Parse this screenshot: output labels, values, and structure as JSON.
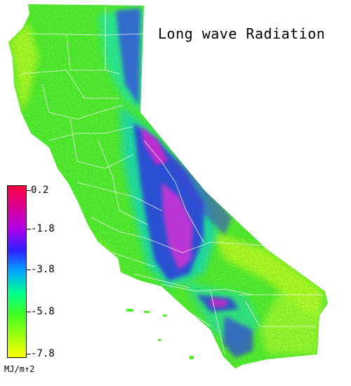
{
  "map": {
    "title": "Long wave Radiation",
    "region": "California",
    "legend": {
      "unit": "MJ/m↑2",
      "ticks": [
        "0.2",
        "-1.8",
        "-3.8",
        "-5.8",
        "-7.8"
      ],
      "stops": [
        {
          "value": 0.2,
          "color": "#ff0040"
        },
        {
          "value": -1.8,
          "color": "#b000e8"
        },
        {
          "value": -2.8,
          "color": "#3020ff"
        },
        {
          "value": -3.8,
          "color": "#00a8ff"
        },
        {
          "value": -4.8,
          "color": "#00ff90"
        },
        {
          "value": -5.8,
          "color": "#40ff20"
        },
        {
          "value": -7.8,
          "color": "#ffff00"
        }
      ]
    },
    "colors": {
      "background": "#ffffff",
      "county_lines": "#ffffff",
      "base_green": "#55ee30",
      "coast_yellow": "#c8ff20",
      "mountain_blue": "#3838f0",
      "peak_magenta": "#e020e0"
    }
  }
}
